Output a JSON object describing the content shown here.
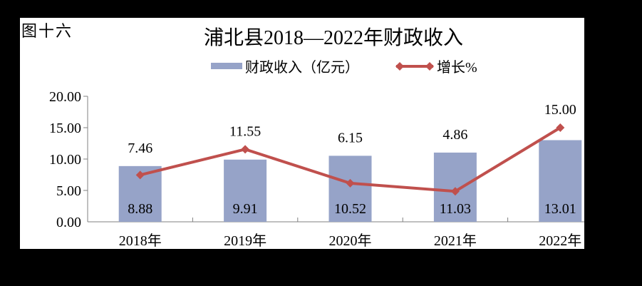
{
  "figure_label": "图十六",
  "title": "浦北县2018—2022年财政收入",
  "legend": [
    {
      "label": "财政收入（亿元）",
      "marker": "bar-swatch",
      "color": "#96A3C8"
    },
    {
      "label": "增长%",
      "marker": "line-with-diamond-markers",
      "color": "#C0504D"
    }
  ],
  "colors": {
    "bar": "#96A3C8",
    "line": "#C0504D",
    "axis": "#808080",
    "text": "#000000",
    "plot_background": "#FFFFFF",
    "frame": "#000000"
  },
  "chart_data": {
    "type": "bar",
    "subtype": "bar+line combo, shared y axis",
    "title": "浦北县2018—2022年财政收入",
    "categories": [
      "2018年",
      "2019年",
      "2020年",
      "2021年",
      "2022年"
    ],
    "series": [
      {
        "name": "财政收入（亿元）",
        "type": "bar",
        "values": [
          8.88,
          9.91,
          10.52,
          11.03,
          13.01
        ]
      },
      {
        "name": "增长%",
        "type": "line",
        "values": [
          7.46,
          11.55,
          6.15,
          4.86,
          15.0
        ]
      }
    ],
    "xlabel": "",
    "ylabel": "",
    "ylim": [
      0,
      20
    ],
    "ytick_step": 5,
    "ytick_labels": [
      "0.00",
      "5.00",
      "10.00",
      "15.00",
      "20.00"
    ],
    "grid": false,
    "legend_position": "top",
    "data_labels": "both series, 2 decimal places"
  }
}
